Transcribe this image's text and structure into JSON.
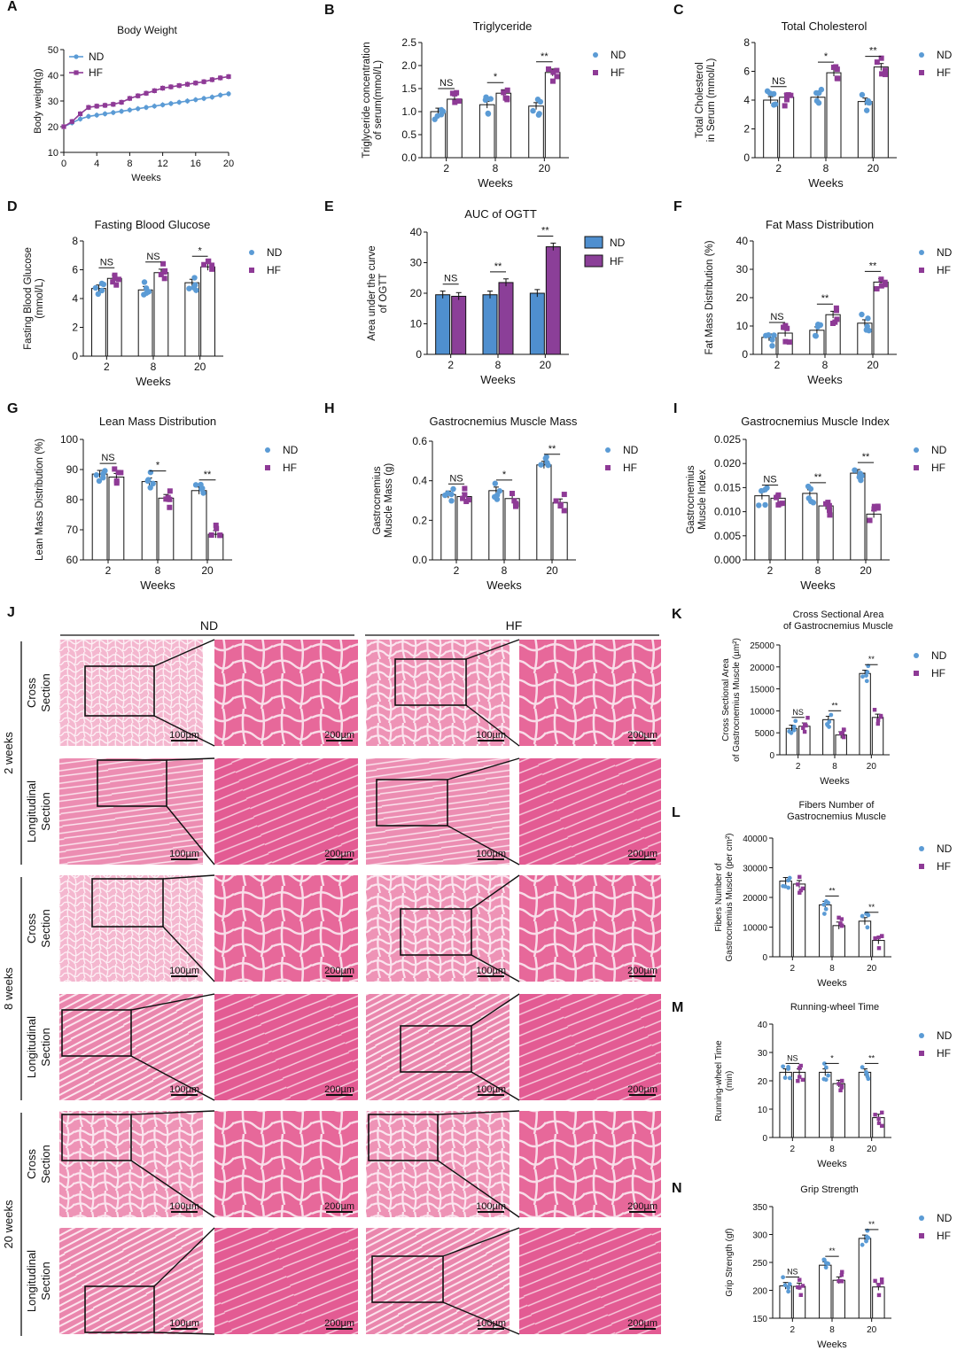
{
  "figure": {
    "colors": {
      "nd": "#5b9bd5",
      "hf": "#8e3a96",
      "nd_bar": "#4f8fcf",
      "hf_bar": "#8b3f98",
      "tissue_light": "#f3bcd0",
      "tissue_mid": "#e77aa2",
      "tissue_dark": "#d9497f"
    },
    "legend": {
      "nd": "ND",
      "hf": "HF"
    }
  },
  "chart_data": [
    {
      "id": "A",
      "type": "line",
      "letter": "A",
      "title": "Body Weight",
      "xlabel": "Weeks",
      "ylabel": "Body weight(g)",
      "xlim": [
        0,
        20
      ],
      "ylim": [
        10,
        50
      ],
      "xticks": [
        0,
        4,
        8,
        12,
        16,
        20
      ],
      "yticks": [
        10,
        20,
        30,
        40,
        50
      ],
      "x": [
        0,
        1,
        2,
        3,
        4,
        5,
        6,
        7,
        8,
        9,
        10,
        11,
        12,
        13,
        14,
        15,
        16,
        17,
        18,
        19,
        20
      ],
      "series": [
        {
          "name": "ND",
          "values": [
            20,
            21.5,
            23,
            24,
            24.5,
            25,
            25.5,
            26,
            26.5,
            27,
            27.5,
            28,
            28.5,
            29,
            29.5,
            30,
            30.5,
            31,
            31.5,
            32.3,
            32.8
          ]
        },
        {
          "name": "HF",
          "values": [
            20,
            22,
            25,
            27.5,
            28,
            28.3,
            28.7,
            29.5,
            31,
            32,
            33,
            34,
            35,
            35.5,
            36,
            36.5,
            37,
            37.5,
            38.3,
            39,
            39.5
          ]
        }
      ]
    },
    {
      "id": "B",
      "type": "bar",
      "letter": "B",
      "title": "Triglyceride",
      "xlabel": "Weeks",
      "ylabel_lines": [
        "Triglyceride concentration",
        "of serum(mmol/L)"
      ],
      "categories": [
        "2",
        "8",
        "20"
      ],
      "ylim": [
        0,
        2.5
      ],
      "yticks": [
        "0.0",
        "0.5",
        "1.0",
        "1.5",
        "2.0",
        "2.5"
      ],
      "series": [
        {
          "name": "ND",
          "values": [
            1.0,
            1.15,
            1.12
          ]
        },
        {
          "name": "HF",
          "values": [
            1.27,
            1.4,
            1.85
          ]
        }
      ],
      "sig": [
        "NS",
        "*",
        "**"
      ]
    },
    {
      "id": "C",
      "type": "bar",
      "letter": "C",
      "title": "Total Cholesterol",
      "xlabel": "Weeks",
      "ylabel_lines": [
        "Total Cholesterol",
        "in Serum (mmol/L)"
      ],
      "categories": [
        "2",
        "8",
        "20"
      ],
      "ylim": [
        0,
        8
      ],
      "yticks": [
        "0",
        "2",
        "4",
        "6",
        "8"
      ],
      "series": [
        {
          "name": "ND",
          "values": [
            4.0,
            4.2,
            3.9
          ]
        },
        {
          "name": "HF",
          "values": [
            4.2,
            5.9,
            6.3
          ]
        }
      ],
      "sig": [
        "NS",
        "*",
        "**"
      ]
    },
    {
      "id": "D",
      "type": "bar",
      "letter": "D",
      "title": "Fasting Blood Glucose",
      "xlabel": "Weeks",
      "ylabel_lines": [
        "Fasting Blood Glucose",
        "(mmol/L)"
      ],
      "categories": [
        "2",
        "8",
        "20"
      ],
      "ylim": [
        0,
        8
      ],
      "yticks": [
        "0",
        "2",
        "4",
        "6",
        "8"
      ],
      "series": [
        {
          "name": "ND",
          "values": [
            4.7,
            4.6,
            5.1
          ]
        },
        {
          "name": "HF",
          "values": [
            5.4,
            5.8,
            6.2
          ]
        }
      ],
      "sig": [
        "NS",
        "NS",
        "*"
      ]
    },
    {
      "id": "E",
      "type": "bar",
      "letter": "E",
      "filled": true,
      "title": "AUC of OGTT",
      "xlabel": "Weeks",
      "ylabel_lines": [
        "Area under the curve",
        "of OGTT"
      ],
      "categories": [
        "2",
        "8",
        "20"
      ],
      "ylim": [
        0,
        40
      ],
      "yticks": [
        "0",
        "10",
        "20",
        "30",
        "40"
      ],
      "series": [
        {
          "name": "ND",
          "values": [
            19.5,
            19.5,
            20
          ]
        },
        {
          "name": "HF",
          "values": [
            19,
            23.5,
            35.2
          ]
        }
      ],
      "sig": [
        "NS",
        "**",
        "**"
      ]
    },
    {
      "id": "F",
      "type": "bar",
      "letter": "F",
      "title": "Fat Mass Distribution",
      "xlabel": "Weeks",
      "ylabel_lines": [
        "Fat Mass Distribution (%)"
      ],
      "categories": [
        "2",
        "8",
        "20"
      ],
      "ylim": [
        0,
        40
      ],
      "yticks": [
        "0",
        "10",
        "20",
        "30",
        "40"
      ],
      "series": [
        {
          "name": "ND",
          "values": [
            6,
            8.5,
            11
          ]
        },
        {
          "name": "HF",
          "values": [
            7.5,
            14,
            25.5
          ]
        }
      ],
      "sig": [
        "NS",
        "**",
        "**"
      ]
    },
    {
      "id": "G",
      "type": "bar",
      "letter": "G",
      "title": "Lean Mass Distribution",
      "xlabel": "Weeks",
      "ylabel_lines": [
        "Lean Mass Distribution (%)"
      ],
      "categories": [
        "2",
        "8",
        "20"
      ],
      "ylim": [
        60,
        100
      ],
      "yticks": [
        "60",
        "70",
        "80",
        "90",
        "100"
      ],
      "series": [
        {
          "name": "ND",
          "values": [
            88.5,
            86,
            83
          ]
        },
        {
          "name": "HF",
          "values": [
            87.5,
            80.5,
            68.5
          ]
        }
      ],
      "sig": [
        "NS",
        "*",
        "**"
      ]
    },
    {
      "id": "H",
      "type": "bar",
      "letter": "H",
      "title": "Gastrocnemius Muscle Mass",
      "xlabel": "Weeks",
      "ylabel_lines": [
        "Gastrocnemius",
        "Muscle Mass (g)"
      ],
      "categories": [
        "2",
        "8",
        "20"
      ],
      "ylim": [
        0,
        0.6
      ],
      "yticks": [
        "0.0",
        "0.2",
        "0.4",
        "0.6"
      ],
      "series": [
        {
          "name": "ND",
          "values": [
            0.33,
            0.35,
            0.48
          ]
        },
        {
          "name": "HF",
          "values": [
            0.32,
            0.31,
            0.29
          ]
        }
      ],
      "sig": [
        "NS",
        "*",
        "**"
      ]
    },
    {
      "id": "I",
      "type": "bar",
      "letter": "I",
      "title": "Gastrocnemius Muscle Index",
      "xlabel": "Weeks",
      "ylabel_lines": [
        "Gastrocnemius",
        "Muscle Index"
      ],
      "categories": [
        "2",
        "8",
        "20"
      ],
      "ylim": [
        0,
        0.025
      ],
      "yticks": [
        "0.000",
        "0.005",
        "0.010",
        "0.015",
        "0.020",
        "0.025"
      ],
      "series": [
        {
          "name": "ND",
          "values": [
            0.0133,
            0.0138,
            0.018
          ]
        },
        {
          "name": "HF",
          "values": [
            0.0128,
            0.0112,
            0.0095
          ]
        }
      ],
      "sig": [
        "NS",
        "**",
        "**"
      ]
    },
    {
      "id": "K",
      "type": "bar",
      "letter": "K",
      "title_lines": [
        "Cross Sectional Area",
        "of Gastrocnemius Muscle"
      ],
      "xlabel": "Weeks",
      "ylabel_lines": [
        "Cross Sectional Area",
        "of Gastrocnemius Muscle (µm²)"
      ],
      "categories": [
        "2",
        "8",
        "20"
      ],
      "ylim": [
        0,
        25000
      ],
      "yticks": [
        "0",
        "5000",
        "10000",
        "15000",
        "20000",
        "25000"
      ],
      "series": [
        {
          "name": "ND",
          "values": [
            6000,
            8000,
            18500
          ]
        },
        {
          "name": "HF",
          "values": [
            6500,
            4500,
            8500
          ]
        }
      ],
      "sig": [
        "NS",
        "**",
        "**"
      ]
    },
    {
      "id": "L",
      "type": "bar",
      "letter": "L",
      "title_lines": [
        "Fibers Number of",
        "Gastrocnemius Muscle"
      ],
      "xlabel": "Weeks",
      "ylabel_lines": [
        "Fibers Number of",
        "Gastrocnemius Muscle (per cm²)"
      ],
      "categories": [
        "2",
        "8",
        "20"
      ],
      "ylim": [
        0,
        40000
      ],
      "yticks": [
        "0",
        "10000",
        "20000",
        "30000",
        "40000"
      ],
      "series": [
        {
          "name": "ND",
          "values": [
            25500,
            17500,
            12000
          ]
        },
        {
          "name": "HF",
          "values": [
            24500,
            10500,
            5500
          ]
        }
      ],
      "sig": [
        "",
        "**",
        "**"
      ]
    },
    {
      "id": "M",
      "type": "bar",
      "letter": "M",
      "title": "Running-wheel Time",
      "xlabel": "Weeks",
      "ylabel_lines": [
        "Running-wheel Time",
        "(min)"
      ],
      "categories": [
        "2",
        "8",
        "20"
      ],
      "ylim": [
        0,
        40
      ],
      "yticks": [
        "0",
        "10",
        "20",
        "30",
        "40"
      ],
      "series": [
        {
          "name": "ND",
          "values": [
            23,
            23,
            23
          ]
        },
        {
          "name": "HF",
          "values": [
            23,
            19,
            7
          ]
        }
      ],
      "sig": [
        "NS",
        "*",
        "**"
      ]
    },
    {
      "id": "N",
      "type": "bar",
      "letter": "N",
      "title": "Grip Strength",
      "xlabel": "Weeks",
      "ylabel_lines": [
        "Grip Strength (gf)"
      ],
      "categories": [
        "2",
        "8",
        "20"
      ],
      "ylim": [
        150,
        350
      ],
      "yticks": [
        "150",
        "200",
        "250",
        "300",
        "350"
      ],
      "series": [
        {
          "name": "ND",
          "values": [
            208,
            245,
            293
          ]
        },
        {
          "name": "HF",
          "values": [
            207,
            218,
            206
          ]
        }
      ],
      "sig": [
        "NS",
        "**",
        "**"
      ]
    }
  ],
  "histology": {
    "letter": "J",
    "group_nd": "ND",
    "group_hf": "HF",
    "time_labels": [
      "2 weeks",
      "8 weeks",
      "20 weeks"
    ],
    "section_cross": [
      "Cross",
      "Section"
    ],
    "section_long": [
      "Longitudinal",
      "Section"
    ],
    "scale_low": "100µm",
    "scale_high": "200µm"
  }
}
